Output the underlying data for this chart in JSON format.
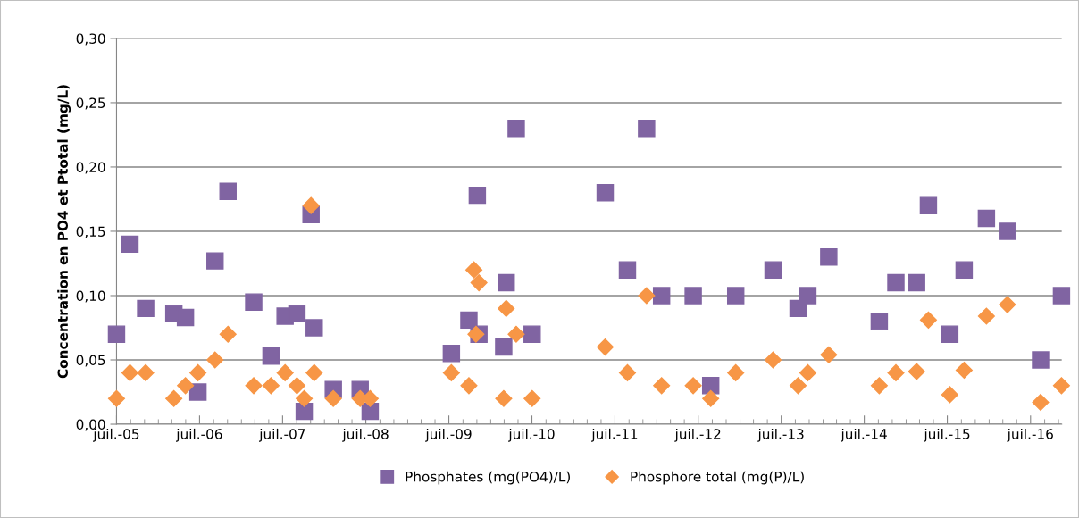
{
  "chart_data": {
    "type": "scatter",
    "ylabel": "Concentration en PO4 et Ptotal (mg/L)",
    "xlim": [
      "2005-07-01",
      "2016-11-15"
    ],
    "xticks": [
      {
        "value": "2005-07-01",
        "label": "juil.-05"
      },
      {
        "value": "2006-07-01",
        "label": "juil.-06"
      },
      {
        "value": "2007-07-01",
        "label": "juil.-07"
      },
      {
        "value": "2008-07-01",
        "label": "juil.-08"
      },
      {
        "value": "2009-07-01",
        "label": "juil.-09"
      },
      {
        "value": "2010-07-01",
        "label": "juil.-10"
      },
      {
        "value": "2011-07-01",
        "label": "juil.-11"
      },
      {
        "value": "2012-07-01",
        "label": "juil.-12"
      },
      {
        "value": "2013-07-01",
        "label": "juil.-13"
      },
      {
        "value": "2014-07-01",
        "label": "juil.-14"
      },
      {
        "value": "2015-07-01",
        "label": "juil.-15"
      },
      {
        "value": "2016-07-01",
        "label": "juil.-16"
      }
    ],
    "ylim": [
      0,
      0.3
    ],
    "yticks": [
      {
        "value": 0,
        "label": "0,00"
      },
      {
        "value": 0.05,
        "label": "0,05"
      },
      {
        "value": 0.1,
        "label": "0,10"
      },
      {
        "value": 0.15,
        "label": "0,15"
      },
      {
        "value": 0.2,
        "label": "0,20"
      },
      {
        "value": 0.25,
        "label": "0,25"
      },
      {
        "value": 0.3,
        "label": "0,30"
      }
    ],
    "grid": "y",
    "legend": "bottom",
    "series": [
      {
        "name": "Phosphates (mg(PO4)/L)",
        "color": "#8064a2",
        "marker": "square",
        "x": [
          "2005-07-01",
          "2005-08-29",
          "2005-11-06",
          "2006-03-10",
          "2006-04-30",
          "2006-06-24",
          "2006-09-07",
          "2006-11-03",
          "2007-02-24",
          "2007-05-11",
          "2007-07-12",
          "2007-09-02",
          "2007-10-04",
          "2007-11-03",
          "2007-11-17",
          "2008-02-09",
          "2008-06-06",
          "2008-07-20",
          "2009-07-12",
          "2009-09-27",
          "2009-11-03",
          "2009-11-10",
          "2010-02-27",
          "2010-03-10",
          "2010-04-23",
          "2010-07-02",
          "2011-05-19",
          "2011-08-25",
          "2011-11-17",
          "2012-01-22",
          "2012-06-09",
          "2012-08-25",
          "2012-12-13",
          "2013-05-26",
          "2013-09-13",
          "2013-10-26",
          "2014-01-26",
          "2014-09-05",
          "2014-11-17",
          "2015-02-16",
          "2015-04-09",
          "2015-07-12",
          "2015-09-13",
          "2015-12-20",
          "2016-03-21",
          "2016-08-14",
          "2016-11-14"
        ],
        "values": [
          0.07,
          0.14,
          0.09,
          0.086,
          0.083,
          0.025,
          0.127,
          0.181,
          0.095,
          0.053,
          0.084,
          0.086,
          0.01,
          0.163,
          0.075,
          0.027,
          0.027,
          0.01,
          0.055,
          0.081,
          0.178,
          0.07,
          0.06,
          0.11,
          0.23,
          0.07,
          0.18,
          0.12,
          0.23,
          0.1,
          0.1,
          0.03,
          0.1,
          0.12,
          0.09,
          0.1,
          0.13,
          0.08,
          0.11,
          0.11,
          0.17,
          0.07,
          0.12,
          0.16,
          0.15,
          0.05,
          0.1
        ]
      },
      {
        "name": "Phosphore total (mg(P)/L)",
        "color": "#f79646",
        "marker": "diamond",
        "x": [
          "2005-07-01",
          "2005-08-29",
          "2005-11-06",
          "2006-03-10",
          "2006-04-30",
          "2006-06-24",
          "2006-09-07",
          "2006-11-03",
          "2007-02-24",
          "2007-05-11",
          "2007-07-12",
          "2007-09-02",
          "2007-10-04",
          "2007-11-03",
          "2007-11-17",
          "2008-02-09",
          "2008-06-06",
          "2008-07-20",
          "2009-07-12",
          "2009-09-27",
          "2009-10-19",
          "2009-10-28",
          "2009-11-10",
          "2010-02-27",
          "2010-03-10",
          "2010-04-23",
          "2010-07-02",
          "2011-05-19",
          "2011-08-25",
          "2011-11-17",
          "2012-01-22",
          "2012-06-09",
          "2012-08-25",
          "2012-12-13",
          "2013-05-26",
          "2013-09-13",
          "2013-10-26",
          "2014-01-26",
          "2014-09-05",
          "2014-11-17",
          "2015-02-16",
          "2015-04-09",
          "2015-07-12",
          "2015-09-13",
          "2015-12-20",
          "2016-03-21",
          "2016-08-14",
          "2016-11-14"
        ],
        "values": [
          0.02,
          0.04,
          0.04,
          0.02,
          0.03,
          0.04,
          0.05,
          0.07,
          0.03,
          0.03,
          0.04,
          0.03,
          0.02,
          0.17,
          0.04,
          0.02,
          0.02,
          0.02,
          0.04,
          0.03,
          0.12,
          0.07,
          0.11,
          0.02,
          0.09,
          0.07,
          0.02,
          0.06,
          0.04,
          0.1,
          0.03,
          0.03,
          0.02,
          0.04,
          0.05,
          0.03,
          0.04,
          0.054,
          0.03,
          0.04,
          0.041,
          0.081,
          0.023,
          0.042,
          0.084,
          0.093,
          0.017,
          0.03
        ]
      }
    ]
  }
}
